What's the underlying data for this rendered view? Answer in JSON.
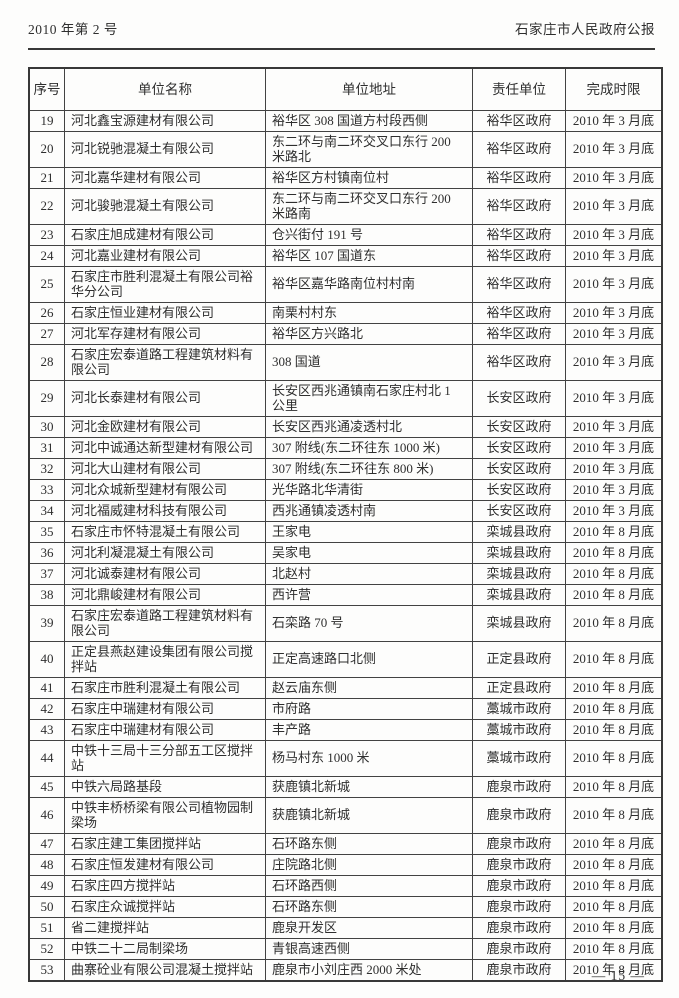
{
  "page_header": {
    "issue": "2010 年第 2 号",
    "title": "石家庄市人民政府公报"
  },
  "table": {
    "columns": [
      "序号",
      "单位名称",
      "单位地址",
      "责任单位",
      "完成时限"
    ],
    "rows": [
      [
        "19",
        "河北鑫宝源建材有限公司",
        "裕华区 308 国道方村段西侧",
        "裕华区政府",
        "2010 年 3 月底"
      ],
      [
        "20",
        "河北锐驰混凝土有限公司",
        "东二环与南二环交叉口东行 200 米路北",
        "裕华区政府",
        "2010 年 3 月底"
      ],
      [
        "21",
        "河北嘉华建材有限公司",
        "裕华区方村镇南位村",
        "裕华区政府",
        "2010 年 3 月底"
      ],
      [
        "22",
        "河北骏驰混凝土有限公司",
        "东二环与南二环交叉口东行 200 米路南",
        "裕华区政府",
        "2010 年 3 月底"
      ],
      [
        "23",
        "石家庄旭成建材有限公司",
        "仓兴街付 191 号",
        "裕华区政府",
        "2010 年 3 月底"
      ],
      [
        "24",
        "河北嘉业建材有限公司",
        "裕华区 107 国道东",
        "裕华区政府",
        "2010 年 3 月底"
      ],
      [
        "25",
        "石家庄市胜利混凝土有限公司裕华分公司",
        "裕华区嘉华路南位村村南",
        "裕华区政府",
        "2010 年 3 月底"
      ],
      [
        "26",
        "石家庄恒业建材有限公司",
        "南栗村村东",
        "裕华区政府",
        "2010 年 3 月底"
      ],
      [
        "27",
        "河北军存建材有限公司",
        "裕华区方兴路北",
        "裕华区政府",
        "2010 年 3 月底"
      ],
      [
        "28",
        "石家庄宏泰道路工程建筑材料有限公司",
        "308 国道",
        "裕华区政府",
        "2010 年 3 月底"
      ],
      [
        "29",
        "河北长泰建材有限公司",
        "长安区西兆通镇南石家庄村北 1 公里",
        "长安区政府",
        "2010 年 3 月底"
      ],
      [
        "30",
        "河北金欧建材有限公司",
        "长安区西兆通凌透村北",
        "长安区政府",
        "2010 年 3 月底"
      ],
      [
        "31",
        "河北中诚通达新型建材有限公司",
        "307 附线(东二环往东 1000 米)",
        "长安区政府",
        "2010 年 3 月底"
      ],
      [
        "32",
        "河北大山建材有限公司",
        "307 附线(东二环往东 800 米)",
        "长安区政府",
        "2010 年 3 月底"
      ],
      [
        "33",
        "河北众城新型建材有限公司",
        "光华路北华清街",
        "长安区政府",
        "2010 年 3 月底"
      ],
      [
        "34",
        "河北福威建材科技有限公司",
        "西兆通镇凌透村南",
        "长安区政府",
        "2010 年 3 月底"
      ],
      [
        "35",
        "石家庄市怀特混凝土有限公司",
        "王家电",
        "栾城县政府",
        "2010 年 8 月底"
      ],
      [
        "36",
        "河北利凝混凝土有限公司",
        "吴家电",
        "栾城县政府",
        "2010 年 8 月底"
      ],
      [
        "37",
        "河北诚泰建材有限公司",
        "北赵村",
        "栾城县政府",
        "2010 年 8 月底"
      ],
      [
        "38",
        "河北鼎峻建材有限公司",
        "西许营",
        "栾城县政府",
        "2010 年 8 月底"
      ],
      [
        "39",
        "石家庄宏泰道路工程建筑材料有限公司",
        "石栾路 70 号",
        "栾城县政府",
        "2010 年 8 月底"
      ],
      [
        "40",
        "正定县燕赵建设集团有限公司搅拌站",
        "正定高速路口北侧",
        "正定县政府",
        "2010 年 8 月底"
      ],
      [
        "41",
        "石家庄市胜利混凝土有限公司",
        "赵云庙东侧",
        "正定县政府",
        "2010 年 8 月底"
      ],
      [
        "42",
        "石家庄中瑞建材有限公司",
        "市府路",
        "藁城市政府",
        "2010 年 8 月底"
      ],
      [
        "43",
        "石家庄中瑞建材有限公司",
        "丰产路",
        "藁城市政府",
        "2010 年 8 月底"
      ],
      [
        "44",
        "中铁十三局十三分部五工区搅拌站",
        "杨马村东 1000 米",
        "藁城市政府",
        "2010 年 8 月底"
      ],
      [
        "45",
        "中铁六局路基段",
        "获鹿镇北新城",
        "鹿泉市政府",
        "2010 年 8 月底"
      ],
      [
        "46",
        "中铁丰桥桥梁有限公司植物园制梁场",
        "获鹿镇北新城",
        "鹿泉市政府",
        "2010 年 8 月底"
      ],
      [
        "47",
        "石家庄建工集团搅拌站",
        "石环路东侧",
        "鹿泉市政府",
        "2010 年 8 月底"
      ],
      [
        "48",
        "石家庄恒发建材有限公司",
        "庄院路北侧",
        "鹿泉市政府",
        "2010 年 8 月底"
      ],
      [
        "49",
        "石家庄四方搅拌站",
        "石环路西侧",
        "鹿泉市政府",
        "2010 年 8 月底"
      ],
      [
        "50",
        "石家庄众诚搅拌站",
        "石环路东侧",
        "鹿泉市政府",
        "2010 年 8 月底"
      ],
      [
        "51",
        "省二建搅拌站",
        "鹿泉开发区",
        "鹿泉市政府",
        "2010 年 8 月底"
      ],
      [
        "52",
        "中铁二十二局制梁场",
        "青银高速西侧",
        "鹿泉市政府",
        "2010 年 8 月底"
      ],
      [
        "53",
        "曲寨砼业有限公司混凝土搅拌站",
        "鹿泉市小刘庄西 2000 米处",
        "鹿泉市政府",
        "2010 年 8 月底"
      ]
    ]
  },
  "footer": {
    "page_number": "— 15 —"
  }
}
